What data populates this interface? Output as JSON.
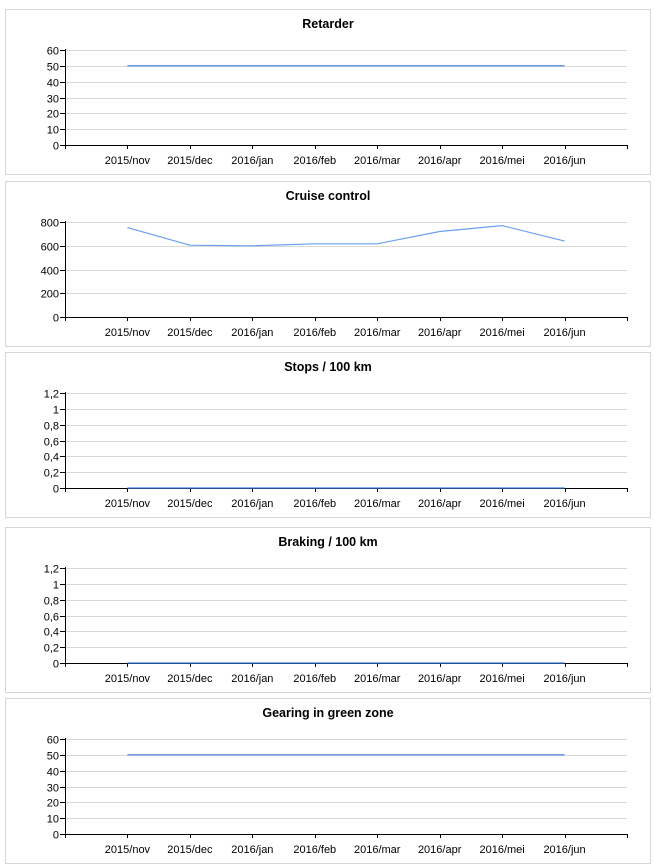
{
  "chart_data": [
    {
      "type": "line",
      "title": "Retarder",
      "categories": [
        "2015/nov",
        "2015/dec",
        "2016/jan",
        "2016/feb",
        "2016/mar",
        "2016/apr",
        "2016/mei",
        "2016/jun"
      ],
      "values": [
        50,
        50,
        50,
        50,
        50,
        50,
        50,
        50
      ],
      "ylim": [
        0,
        60
      ],
      "yticks": [
        "0",
        "10",
        "20",
        "30",
        "40",
        "50",
        "60"
      ],
      "ytick_values": [
        0,
        10,
        20,
        30,
        40,
        50,
        60
      ],
      "grid": true,
      "color": "#3f7fe0"
    },
    {
      "type": "line",
      "title": "Cruise control",
      "categories": [
        "2015/nov",
        "2015/dec",
        "2016/jan",
        "2016/feb",
        "2016/mar",
        "2016/apr",
        "2016/mei",
        "2016/jun"
      ],
      "values": [
        753,
        605,
        600,
        616,
        616,
        720,
        770,
        639
      ],
      "ylim": [
        0,
        800
      ],
      "yticks": [
        "0",
        "200",
        "400",
        "600",
        "800"
      ],
      "ytick_values": [
        0,
        200,
        400,
        600,
        800
      ],
      "grid": true,
      "color": "#6a9ff0"
    },
    {
      "type": "line",
      "title": "Stops / 100 km",
      "categories": [
        "2015/nov",
        "2015/dec",
        "2016/jan",
        "2016/feb",
        "2016/mar",
        "2016/apr",
        "2016/mei",
        "2016/jun"
      ],
      "values": [
        0,
        0,
        0,
        0,
        0,
        0,
        0,
        0
      ],
      "ylim": [
        0,
        1.2
      ],
      "yticks": [
        "0",
        "0,2",
        "0,4",
        "0,6",
        "0,8",
        "1",
        "1,2"
      ],
      "ytick_values": [
        0,
        0.2,
        0.4,
        0.6,
        0.8,
        1,
        1.2
      ],
      "grid": true,
      "color": "#3f7fe0"
    },
    {
      "type": "line",
      "title": "Braking / 100 km",
      "categories": [
        "2015/nov",
        "2015/dec",
        "2016/jan",
        "2016/feb",
        "2016/mar",
        "2016/apr",
        "2016/mei",
        "2016/jun"
      ],
      "values": [
        0,
        0,
        0,
        0,
        0,
        0,
        0,
        0
      ],
      "ylim": [
        0,
        1.2
      ],
      "yticks": [
        "0",
        "0,2",
        "0,4",
        "0,6",
        "0,8",
        "1",
        "1,2"
      ],
      "ytick_values": [
        0,
        0.2,
        0.4,
        0.6,
        0.8,
        1,
        1.2
      ],
      "grid": true,
      "color": "#3f7fe0"
    },
    {
      "type": "line",
      "title": "Gearing in green zone",
      "categories": [
        "2015/nov",
        "2015/dec",
        "2016/jan",
        "2016/feb",
        "2016/mar",
        "2016/apr",
        "2016/mei",
        "2016/jun"
      ],
      "values": [
        50,
        50,
        50,
        50,
        50,
        50,
        50,
        50
      ],
      "ylim": [
        0,
        60
      ],
      "yticks": [
        "0",
        "10",
        "20",
        "30",
        "40",
        "50",
        "60"
      ],
      "ytick_values": [
        0,
        10,
        20,
        30,
        40,
        50,
        60
      ],
      "grid": true,
      "color": "#3f7fe0"
    }
  ]
}
